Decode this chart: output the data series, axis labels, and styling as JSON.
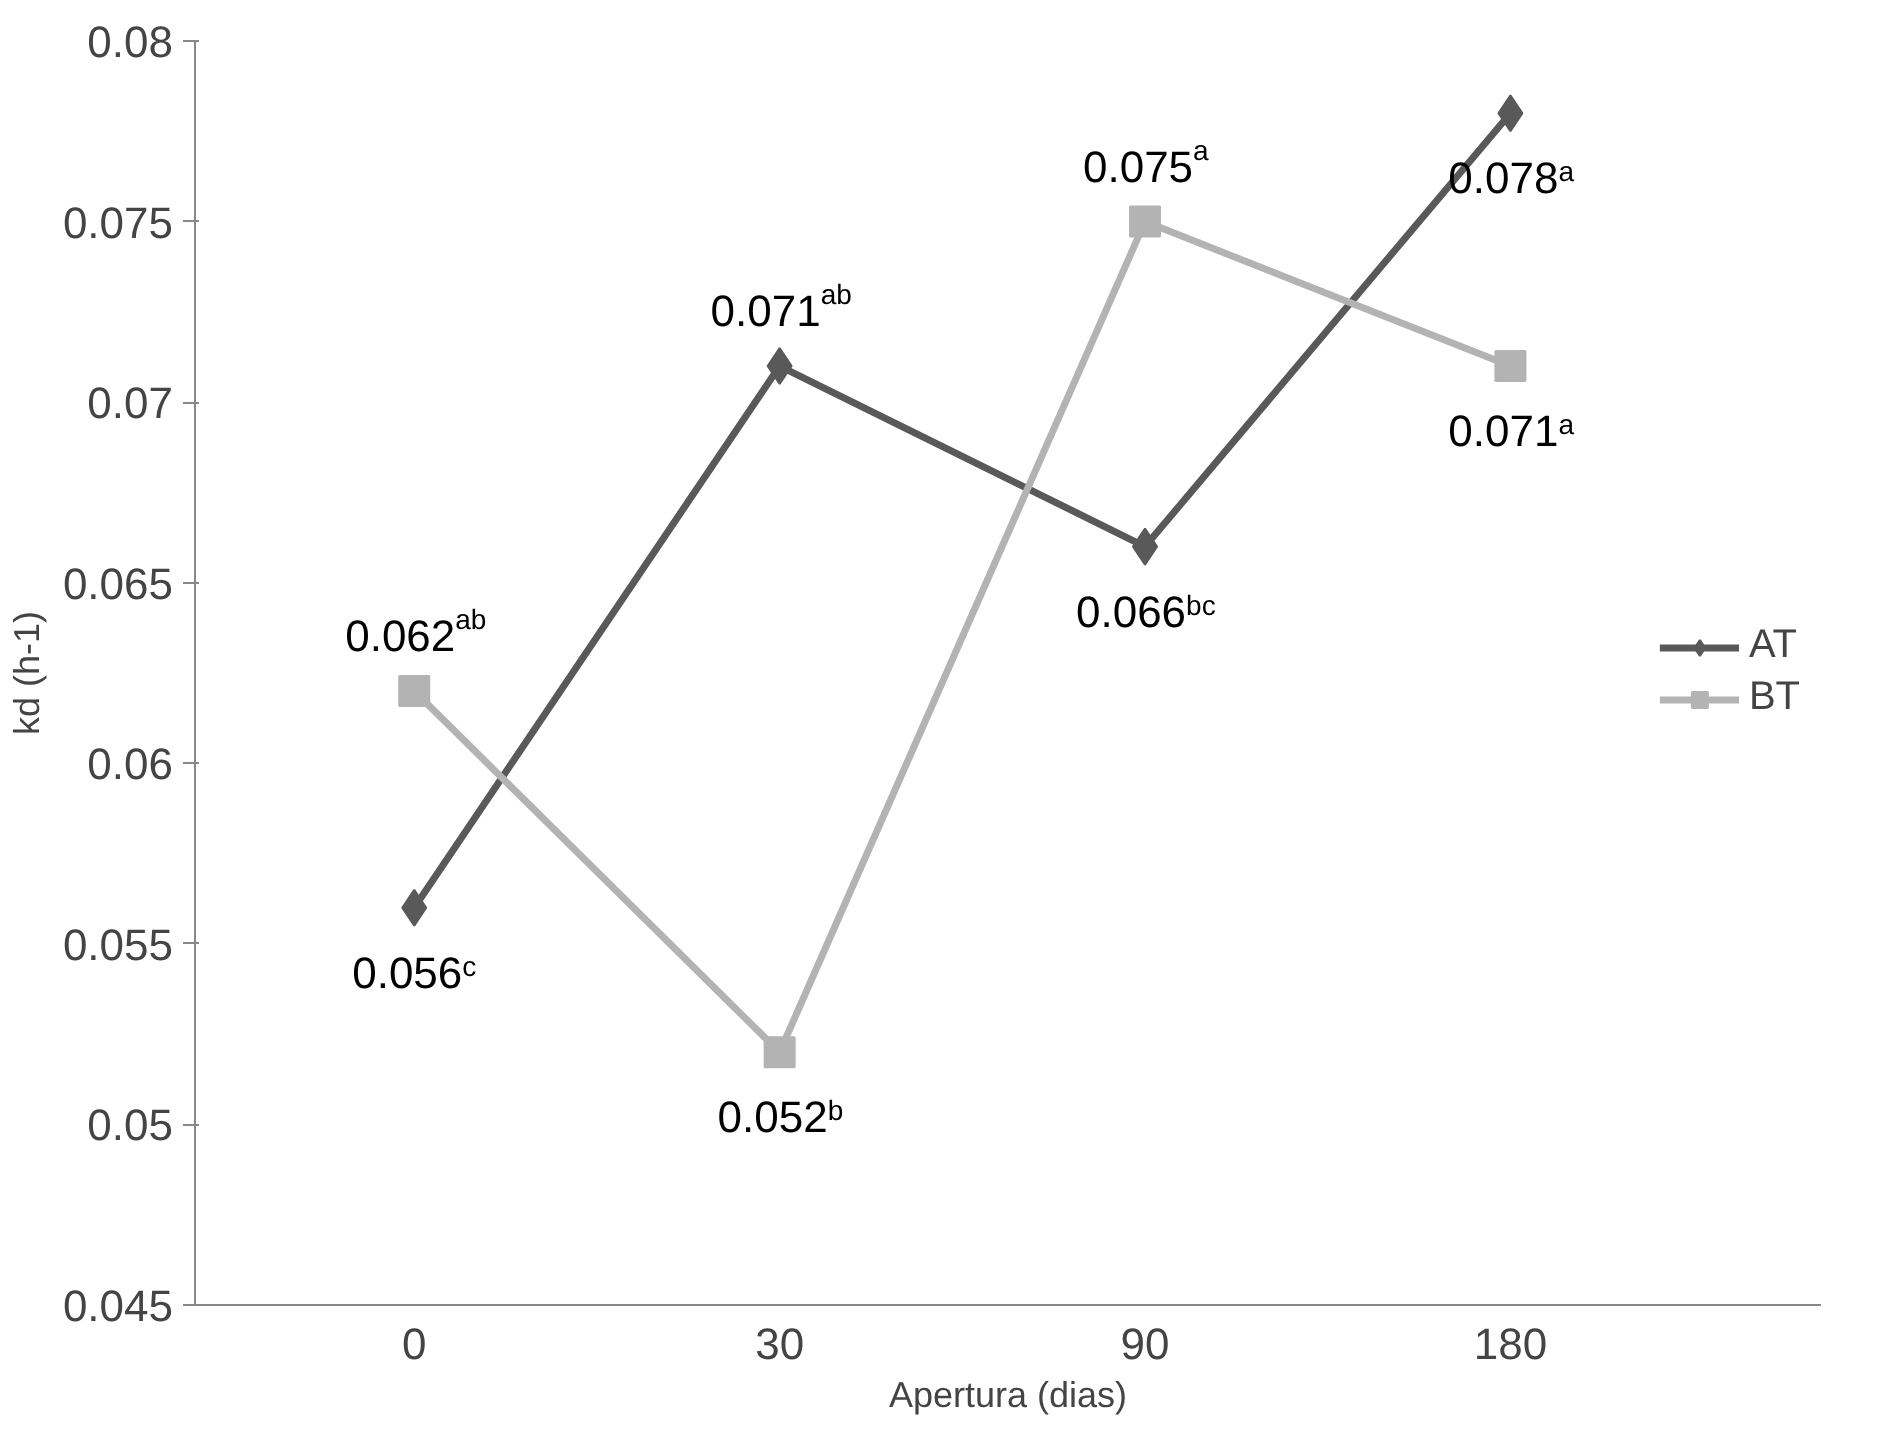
{
  "chart_data": {
    "type": "line",
    "xlabel": "Apertura (dias)",
    "ylabel": "kd (h-1)",
    "categories": [
      "0",
      "30",
      "90",
      "180"
    ],
    "series": [
      {
        "name": "AT",
        "color": "#595959",
        "marker": "diamond",
        "values": [
          0.056,
          0.071,
          0.066,
          0.078
        ],
        "value_labels": [
          "0.056$^{c}$",
          "0.071$^{ab}$",
          "0.066$^{bc}$",
          "0.078$^{a}$"
        ]
      },
      {
        "name": "BT",
        "color": "#b3b3b3",
        "marker": "square",
        "values": [
          0.062,
          0.052,
          0.075,
          0.071
        ],
        "value_labels": [
          "0.062$^{ab}$",
          "0.052$^{b}$",
          "0.075$^{a}$",
          "0.071$^{a}$"
        ]
      }
    ],
    "ylim": [
      0.045,
      0.08
    ],
    "yticks": [
      0.045,
      0.05,
      0.055,
      0.06,
      0.065,
      0.07,
      0.075,
      0.08
    ],
    "grid": false,
    "legend": "right",
    "line_style": "solid"
  }
}
